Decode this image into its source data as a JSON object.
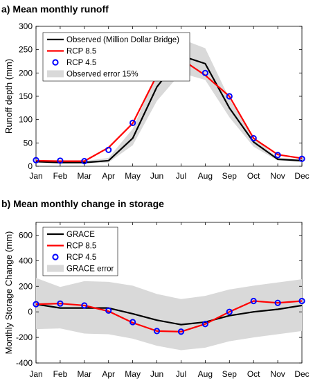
{
  "chart_data": [
    {
      "type": "line",
      "title": "a) Mean monthly runoff",
      "xlabel": "",
      "ylabel": "Runoff depth (mm)",
      "categories": [
        "Jan",
        "Feb",
        "Mar",
        "Apr",
        "May",
        "Jun",
        "Jul",
        "Aug",
        "Sep",
        "Oct",
        "Nov",
        "Dec"
      ],
      "ylim": [
        0,
        300
      ],
      "yticks": [
        0,
        50,
        100,
        150,
        200,
        250,
        300
      ],
      "grid": false,
      "legend_position": "top-left",
      "series": [
        {
          "name": "Observed (Million Dollar Bridge)",
          "style": "line",
          "color": "#000000",
          "values": [
            10,
            8,
            8,
            12,
            60,
            170,
            237,
            220,
            125,
            52,
            15,
            12
          ]
        },
        {
          "name": "RCP 8.5",
          "style": "line",
          "color": "#ff0000",
          "values": [
            12,
            11,
            11,
            40,
            92,
            195,
            230,
            195,
            150,
            60,
            25,
            17
          ]
        },
        {
          "name": "RCP 4.5",
          "style": "marker",
          "color": "#0000ff",
          "values": [
            13,
            12,
            11,
            35,
            93,
            195,
            232,
            200,
            150,
            60,
            24,
            16
          ]
        },
        {
          "name": "Observed error 15%",
          "style": "band",
          "color": "#d9d9d9",
          "lower": [
            7,
            6,
            6,
            8,
            45,
            140,
            200,
            185,
            105,
            42,
            12,
            9
          ],
          "upper": [
            13,
            11,
            11,
            18,
            80,
            200,
            273,
            253,
            145,
            62,
            18,
            15
          ]
        }
      ]
    },
    {
      "type": "line",
      "title": "b) Mean monthly change in storage",
      "xlabel": "",
      "ylabel": "Monthly Storage Change (mm)",
      "categories": [
        "Jan",
        "Feb",
        "Mar",
        "Apr",
        "May",
        "Jun",
        "Jul",
        "Aug",
        "Sep",
        "Oct",
        "Nov",
        "Dec"
      ],
      "ylim": [
        -400,
        700
      ],
      "yticks": [
        -400,
        -200,
        0,
        200,
        400,
        600
      ],
      "grid": false,
      "legend_position": "top-left",
      "series": [
        {
          "name": "GRACE",
          "style": "line",
          "color": "#000000",
          "values": [
            60,
            30,
            30,
            30,
            -15,
            -65,
            -100,
            -80,
            -30,
            0,
            20,
            50
          ]
        },
        {
          "name": "RCP 8.5",
          "style": "line",
          "color": "#ff0000",
          "values": [
            60,
            65,
            50,
            5,
            -85,
            -150,
            -155,
            -95,
            0,
            85,
            70,
            85
          ]
        },
        {
          "name": "RCP 4.5",
          "style": "marker",
          "color": "#0000ff",
          "values": [
            60,
            65,
            50,
            10,
            -80,
            -150,
            -155,
            -95,
            0,
            85,
            70,
            85
          ]
        },
        {
          "name": "GRACE error",
          "style": "band",
          "color": "#d9d9d9",
          "lower": [
            -135,
            -130,
            -170,
            -175,
            -210,
            -265,
            -300,
            -280,
            -230,
            -200,
            -175,
            -150
          ],
          "upper": [
            265,
            195,
            240,
            235,
            205,
            140,
            100,
            125,
            175,
            205,
            230,
            255
          ]
        }
      ]
    }
  ]
}
